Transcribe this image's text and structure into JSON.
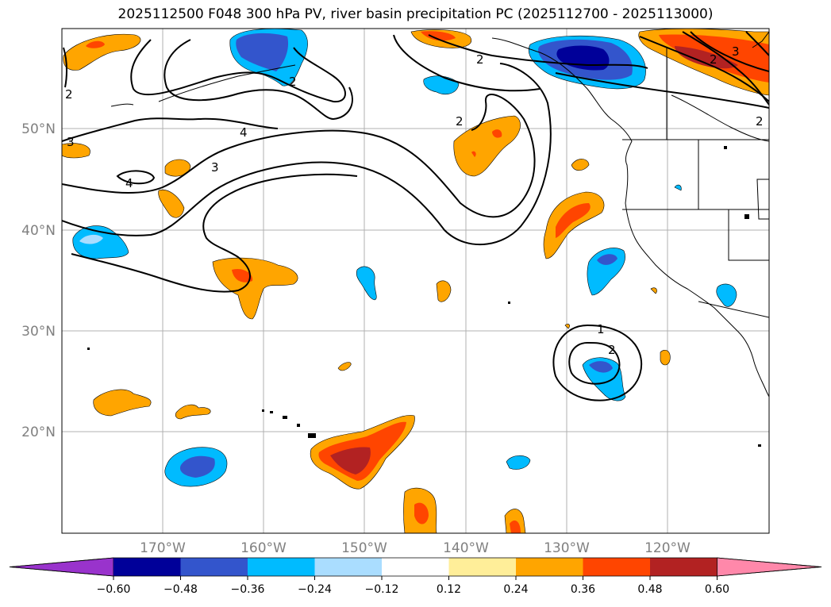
{
  "title": "2025112500 F048 300 hPa PV, river basin precipitation PC (2025112700 - 2025113000)",
  "map": {
    "lat_labels": [
      "50°N",
      "40°N",
      "30°N",
      "20°N"
    ],
    "lon_labels": [
      "170°W",
      "160°W",
      "150°W",
      "140°W",
      "130°W",
      "120°W"
    ],
    "contour_labels": [
      "2",
      "3",
      "4",
      "3",
      "4",
      "2",
      "2",
      "2",
      "3",
      "2",
      "1",
      "2",
      "2"
    ]
  },
  "colorbar": {
    "ticks": [
      "−0.60",
      "−0.48",
      "−0.36",
      "−0.24",
      "−0.12",
      "0.12",
      "0.24",
      "0.36",
      "0.48",
      "0.60"
    ],
    "colors": [
      "#9933cc",
      "#000099",
      "#3355cc",
      "#00bbff",
      "#aaddff",
      "#ffffff",
      "#ffee99",
      "#ffa500",
      "#ff4500",
      "#b22222",
      "#ff88aa"
    ]
  }
}
